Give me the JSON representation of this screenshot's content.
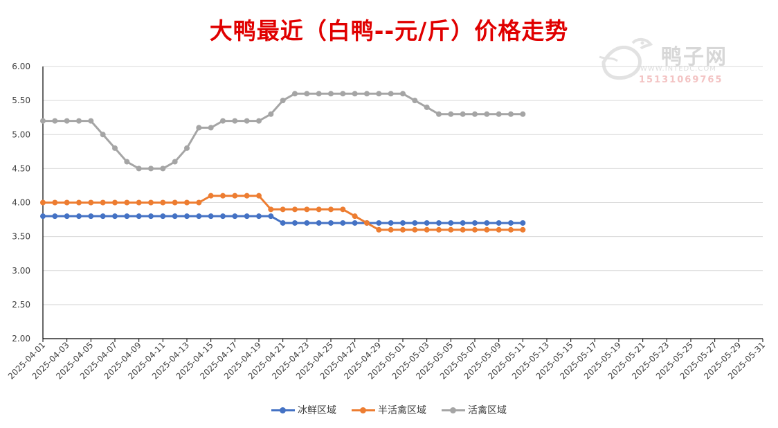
{
  "chart_data": {
    "type": "line",
    "title": "大鸭最近（白鸭--元/斤）价格走势",
    "ylim": [
      2.0,
      6.0
    ],
    "y_ticks": [
      "2.00",
      "2.50",
      "3.00",
      "3.50",
      "4.00",
      "4.50",
      "5.00",
      "5.50",
      "6.00"
    ],
    "grid": true,
    "legend_position": "bottom",
    "x_ticks": [
      "2025-04-01",
      "2025-04-03",
      "2025-04-05",
      "2025-04-07",
      "2025-04-09",
      "2025-04-11",
      "2025-04-13",
      "2025-04-15",
      "2025-04-17",
      "2025-04-19",
      "2025-04-21",
      "2025-04-23",
      "2025-04-25",
      "2025-04-27",
      "2025-04-29",
      "2025-05-01",
      "2025-05-03",
      "2025-05-05",
      "2025-05-07",
      "2025-05-09",
      "2025-05-11",
      "2025-05-13",
      "2025-05-15",
      "2025-05-17",
      "2025-05-19",
      "2025-05-21",
      "2025-05-23",
      "2025-05-25",
      "2025-05-27",
      "2025-05-29",
      "2025-05-31"
    ],
    "x": [
      "2025-04-01",
      "2025-04-02",
      "2025-04-03",
      "2025-04-04",
      "2025-04-05",
      "2025-04-06",
      "2025-04-07",
      "2025-04-08",
      "2025-04-09",
      "2025-04-10",
      "2025-04-11",
      "2025-04-12",
      "2025-04-13",
      "2025-04-14",
      "2025-04-15",
      "2025-04-16",
      "2025-04-17",
      "2025-04-18",
      "2025-04-19",
      "2025-04-20",
      "2025-04-21",
      "2025-04-22",
      "2025-04-23",
      "2025-04-24",
      "2025-04-25",
      "2025-04-26",
      "2025-04-27",
      "2025-04-28",
      "2025-04-29",
      "2025-04-30",
      "2025-05-01",
      "2025-05-02",
      "2025-05-03",
      "2025-05-04",
      "2025-05-05",
      "2025-05-06",
      "2025-05-07",
      "2025-05-08",
      "2025-05-09",
      "2025-05-10",
      "2025-05-11"
    ],
    "series": [
      {
        "name": "冰鲜区域",
        "color": "#4472c4",
        "values": [
          3.8,
          3.8,
          3.8,
          3.8,
          3.8,
          3.8,
          3.8,
          3.8,
          3.8,
          3.8,
          3.8,
          3.8,
          3.8,
          3.8,
          3.8,
          3.8,
          3.8,
          3.8,
          3.8,
          3.8,
          3.7,
          3.7,
          3.7,
          3.7,
          3.7,
          3.7,
          3.7,
          3.7,
          3.7,
          3.7,
          3.7,
          3.7,
          3.7,
          3.7,
          3.7,
          3.7,
          3.7,
          3.7,
          3.7,
          3.7,
          3.7
        ]
      },
      {
        "name": "半活禽区域",
        "color": "#ed7d31",
        "values": [
          4.0,
          4.0,
          4.0,
          4.0,
          4.0,
          4.0,
          4.0,
          4.0,
          4.0,
          4.0,
          4.0,
          4.0,
          4.0,
          4.0,
          4.1,
          4.1,
          4.1,
          4.1,
          4.1,
          3.9,
          3.9,
          3.9,
          3.9,
          3.9,
          3.9,
          3.9,
          3.8,
          3.7,
          3.6,
          3.6,
          3.6,
          3.6,
          3.6,
          3.6,
          3.6,
          3.6,
          3.6,
          3.6,
          3.6,
          3.6,
          3.6
        ]
      },
      {
        "name": "活禽区域",
        "color": "#a5a5a5",
        "values": [
          5.2,
          5.2,
          5.2,
          5.2,
          5.2,
          5.0,
          4.8,
          4.6,
          4.5,
          4.5,
          4.5,
          4.6,
          4.8,
          5.1,
          5.1,
          5.2,
          5.2,
          5.2,
          5.2,
          5.3,
          5.5,
          5.6,
          5.6,
          5.6,
          5.6,
          5.6,
          5.6,
          5.6,
          5.6,
          5.6,
          5.6,
          5.5,
          5.4,
          5.3,
          5.3,
          5.3,
          5.3,
          5.3,
          5.3,
          5.3,
          5.3
        ]
      }
    ]
  },
  "watermark": {
    "brand": "鸭子网",
    "url": "WWW.INTEDC.COM",
    "phone": "15131069765"
  }
}
